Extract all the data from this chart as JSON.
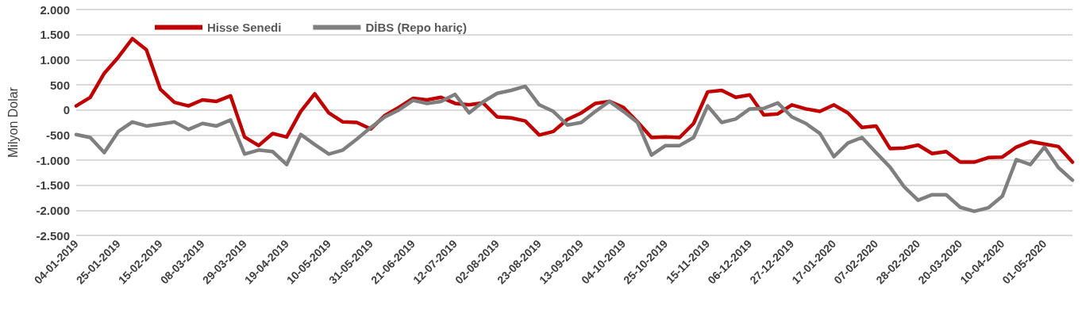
{
  "chart_data": {
    "type": "line",
    "ylabel": "Milyon Dolar",
    "categories": [
      "04-01-2019",
      null,
      null,
      "25-01-2019",
      null,
      null,
      "15-02-2019",
      null,
      null,
      "08-03-2019",
      null,
      null,
      "29-03-2019",
      null,
      null,
      "19-04-2019",
      null,
      null,
      "10-05-2019",
      null,
      null,
      "31-05-2019",
      null,
      null,
      "21-06-2019",
      null,
      null,
      "12-07-2019",
      null,
      null,
      "02-08-2019",
      null,
      null,
      "23-08-2019",
      null,
      null,
      "13-09-2019",
      null,
      null,
      "04-10-2019",
      null,
      null,
      "25-10-2019",
      null,
      null,
      "15-11-2019",
      null,
      null,
      "06-12-2019",
      null,
      null,
      "27-12-2019",
      null,
      null,
      "17-01-2020",
      null,
      null,
      "07-02-2020",
      null,
      null,
      "28-02-2020",
      null,
      null,
      "20-03-2020",
      null,
      null,
      "10-04-2020",
      null,
      null,
      "01-05-2020",
      null,
      null
    ],
    "series": [
      {
        "name": "Hisse Senedi",
        "color": "#c00000",
        "values": [
          80,
          250,
          730,
          1050,
          1420,
          1200,
          410,
          150,
          80,
          200,
          170,
          280,
          -540,
          -710,
          -470,
          -540,
          -30,
          320,
          -60,
          -240,
          -250,
          -380,
          -110,
          50,
          230,
          200,
          250,
          130,
          100,
          140,
          -140,
          -160,
          -220,
          -500,
          -430,
          -190,
          -60,
          130,
          170,
          50,
          -240,
          -550,
          -540,
          -550,
          -270,
          360,
          390,
          250,
          300,
          -100,
          -80,
          100,
          20,
          -30,
          100,
          -60,
          -350,
          -320,
          -770,
          -760,
          -700,
          -870,
          -830,
          -1040,
          -1040,
          -950,
          -940,
          -740,
          -630,
          -680,
          -730,
          -1040
        ]
      },
      {
        "name": "DİBS (Repo hariç)",
        "color": "#7f7f7f",
        "values": [
          -490,
          -550,
          -850,
          -430,
          -240,
          -320,
          -280,
          -240,
          -390,
          -270,
          -320,
          -200,
          -880,
          -800,
          -830,
          -1090,
          -490,
          -690,
          -880,
          -800,
          -580,
          -350,
          -140,
          0,
          190,
          130,
          170,
          310,
          -60,
          160,
          330,
          390,
          470,
          100,
          -30,
          -300,
          -250,
          -30,
          170,
          -30,
          -250,
          -900,
          -710,
          -710,
          -550,
          80,
          -250,
          -180,
          20,
          30,
          140,
          -140,
          -270,
          -470,
          -930,
          -660,
          -550,
          -850,
          -1140,
          -1530,
          -1800,
          -1690,
          -1690,
          -1940,
          -2020,
          -1950,
          -1720,
          -990,
          -1090,
          -740,
          -1150,
          -1400
        ]
      }
    ],
    "ylim": [
      -2500,
      2000
    ],
    "yticks": [
      {
        "value": -2500,
        "label": "-2.500"
      },
      {
        "value": -2000,
        "label": "-2.000"
      },
      {
        "value": -1500,
        "label": "-1.500"
      },
      {
        "value": -1000,
        "label": "-1.000"
      },
      {
        "value": -500,
        "label": "-500"
      },
      0,
      500,
      {
        "value": 1000,
        "label": "1.000"
      },
      {
        "value": 1500,
        "label": "1.500"
      },
      {
        "value": 2000,
        "label": "2.000"
      }
    ],
    "grid": "y",
    "legend": "top left",
    "line_style": "solid",
    "marker": "none"
  }
}
